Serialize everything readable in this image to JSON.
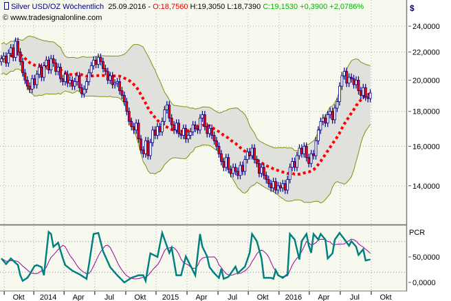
{
  "header": {
    "symbol": "Silver USD/OZ Wöchentlich",
    "date": "25.09.2016 -",
    "open": "O:18,7560",
    "high_low": "H:19,3050 L:18,7390",
    "close_change": "C:19,1530 +0,3900 +2,0786%",
    "copyright": "© www.tradesignalonline.com"
  },
  "colors": {
    "plot_bg": "#f7f9ee",
    "band_fill": "#e0e1dc",
    "band_line": "#8a8a10",
    "ma": "#ff0000",
    "candle_outline": "#000080",
    "down_body": "#ff0000",
    "up_body": "#ffffff",
    "pcr": "#008080",
    "pcr_signal": "#990099"
  },
  "chart_data": [
    {
      "type": "candlestick",
      "title": "Silver USD/OZ Wöchentlich",
      "y_scale": "log",
      "ylabel": "$",
      "ylim": [
        12.8,
        25
      ],
      "y_ticks": [
        {
          "value": 24,
          "label": "24,0000"
        },
        {
          "value": 22,
          "label": "22,0000"
        },
        {
          "value": 20,
          "label": "20,0000"
        },
        {
          "value": 18,
          "label": "18,0000"
        },
        {
          "value": 16,
          "label": "16,0000"
        },
        {
          "value": 14,
          "label": "14,0000"
        }
      ],
      "overlays": [
        "Bollinger Bands (20, 2)",
        "Moving Average (20)"
      ],
      "weekly_close": [
        21.5,
        21.7,
        21.2,
        21.9,
        22.3,
        21.6,
        22.8,
        22.0,
        21.3,
        20.5,
        20.0,
        19.6,
        19.4,
        20.1,
        19.7,
        20.4,
        20.9,
        20.2,
        21.0,
        21.4,
        20.7,
        21.5,
        21.2,
        20.6,
        20.9,
        20.1,
        19.9,
        20.4,
        19.8,
        20.0,
        19.6,
        19.9,
        20.3,
        19.5,
        19.1,
        19.4,
        19.9,
        20.5,
        21.0,
        21.4,
        21.1,
        21.6,
        21.3,
        20.8,
        20.6,
        20.0,
        20.3,
        19.7,
        19.8,
        19.9,
        19.3,
        19.0,
        18.6,
        18.0,
        17.4,
        17.1,
        16.9,
        17.3,
        16.4,
        15.8,
        15.6,
        16.3,
        15.5,
        16.2,
        16.9,
        16.6,
        17.1,
        16.8,
        17.4,
        18.1,
        18.4,
        17.6,
        17.2,
        16.9,
        17.3,
        16.7,
        16.6,
        17.0,
        16.4,
        16.6,
        16.8,
        17.2,
        17.0,
        16.9,
        17.6,
        17.8,
        17.1,
        16.7,
        17.0,
        16.6,
        16.3,
        16.0,
        15.6,
        15.2,
        14.9,
        15.4,
        14.8,
        14.6,
        14.9,
        14.7,
        14.5,
        15.0,
        14.7,
        15.3,
        15.7,
        15.5,
        15.9,
        15.3,
        15.1,
        14.6,
        14.9,
        14.5,
        14.3,
        14.1,
        13.9,
        14.2,
        13.8,
        14.0,
        13.9,
        14.1,
        13.8,
        14.3,
        14.9,
        15.2,
        14.9,
        15.5,
        15.9,
        15.6,
        16.0,
        15.4,
        15.1,
        15.6,
        15.5,
        16.3,
        16.9,
        17.4,
        17.6,
        17.3,
        17.8,
        18.0,
        17.5,
        18.2,
        18.6,
        19.6,
        20.3,
        20.6,
        19.8,
        20.2,
        20.1,
        19.7,
        20.0,
        19.3,
        19.0,
        19.5,
        18.9,
        18.8,
        19.153
      ]
    },
    {
      "type": "line",
      "title": "PCR",
      "ylim": [
        -10,
        110
      ],
      "y_ticks": [
        {
          "value": 50,
          "label": "50,0000"
        },
        {
          "value": 0,
          "label": "0,0000"
        }
      ],
      "gridlines": [
        80,
        20
      ],
      "series": [
        {
          "name": "PCR",
          "points": [
            [
              0,
              47
            ],
            [
              2,
              36
            ],
            [
              4,
              47
            ],
            [
              7,
              34
            ],
            [
              8,
              14
            ],
            [
              9,
              3
            ],
            [
              11,
              9
            ],
            [
              12,
              16
            ],
            [
              14,
              32
            ],
            [
              15,
              34
            ],
            [
              17,
              30
            ],
            [
              18,
              14
            ],
            [
              20,
              99
            ],
            [
              21,
              95
            ],
            [
              22,
              70
            ],
            [
              24,
              78
            ],
            [
              26,
              47
            ],
            [
              27,
              34
            ],
            [
              30,
              23
            ],
            [
              33,
              16
            ],
            [
              36,
              7
            ],
            [
              37,
              34
            ],
            [
              39,
              95
            ],
            [
              41,
              97
            ],
            [
              43,
              61
            ],
            [
              46,
              30
            ],
            [
              49,
              14
            ],
            [
              52,
              0
            ],
            [
              55,
              9
            ],
            [
              58,
              14
            ],
            [
              60,
              14
            ],
            [
              61,
              3
            ],
            [
              63,
              57
            ],
            [
              66,
              50
            ],
            [
              68,
              97
            ],
            [
              71,
              58
            ],
            [
              72,
              68
            ],
            [
              74,
              14
            ],
            [
              76,
              14
            ],
            [
              78,
              51
            ],
            [
              82,
              14
            ],
            [
              84,
              95
            ],
            [
              85,
              70
            ],
            [
              87,
              51
            ],
            [
              88,
              30
            ],
            [
              90,
              18
            ],
            [
              92,
              9
            ],
            [
              93,
              27
            ],
            [
              94,
              7
            ],
            [
              96,
              11
            ],
            [
              99,
              31
            ],
            [
              100,
              18
            ],
            [
              103,
              31
            ],
            [
              105,
              58
            ],
            [
              106,
              95
            ],
            [
              108,
              81
            ],
            [
              110,
              47
            ],
            [
              111,
              9
            ],
            [
              114,
              9
            ],
            [
              115,
              7
            ],
            [
              116,
              24
            ],
            [
              117,
              14
            ],
            [
              119,
              9
            ],
            [
              121,
              16
            ],
            [
              122,
              95
            ],
            [
              124,
              84
            ],
            [
              126,
              45
            ],
            [
              127,
              81
            ],
            [
              129,
              95
            ],
            [
              130,
              72
            ],
            [
              131,
              58
            ],
            [
              132,
              95
            ],
            [
              134,
              84
            ],
            [
              135,
              95
            ],
            [
              137,
              84
            ],
            [
              138,
              47
            ],
            [
              140,
              57
            ],
            [
              141,
              84
            ],
            [
              143,
              97
            ],
            [
              145,
              85
            ],
            [
              147,
              72
            ],
            [
              148,
              81
            ],
            [
              150,
              70
            ],
            [
              151,
              54
            ],
            [
              153,
              65
            ],
            [
              154,
              43
            ],
            [
              156,
              45
            ]
          ]
        },
        {
          "name": "Signal",
          "smoothing_weeks": 8
        }
      ]
    }
  ],
  "x_axis": {
    "ticks": [
      {
        "week": 1.2,
        "label": "Okt"
      },
      {
        "week": 13.7,
        "label": "2014"
      },
      {
        "week": 26.5,
        "label": "Apr"
      },
      {
        "week": 39.5,
        "label": "Jul"
      },
      {
        "week": 52.6,
        "label": "Okt"
      },
      {
        "week": 65.4,
        "label": "2015"
      },
      {
        "week": 78.5,
        "label": "Apr"
      },
      {
        "week": 91.6,
        "label": "Jul"
      },
      {
        "week": 104.4,
        "label": "Okt"
      },
      {
        "week": 117.4,
        "label": "2016"
      },
      {
        "week": 130.2,
        "label": "Apr"
      },
      {
        "week": 143.3,
        "label": "Jul"
      },
      {
        "week": 156.4,
        "label": "Okt"
      }
    ]
  }
}
